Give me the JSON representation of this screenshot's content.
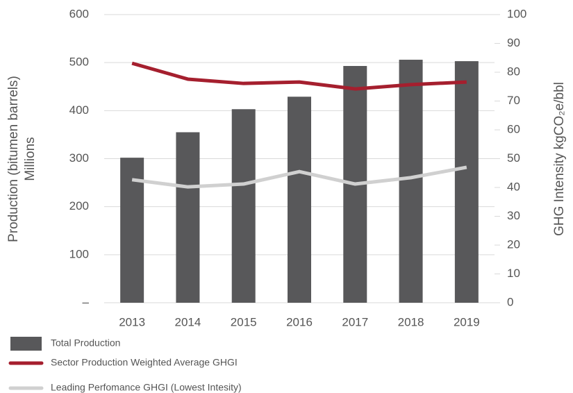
{
  "chart_data": {
    "type": "bar",
    "categories": [
      "2013",
      "2014",
      "2015",
      "2016",
      "2017",
      "2018",
      "2019"
    ],
    "y_label": [
      "Production (bitumen barrels)",
      "Millions"
    ],
    "y2_label": "GHG Intensity kgCO₂e/bbl",
    "series": [
      {
        "name": "Total Production",
        "type": "bar",
        "color": "#58585a",
        "values": [
          302,
          355,
          403,
          429,
          493,
          506,
          503
        ]
      },
      {
        "name": "Sector Production Weighted Average GHGI",
        "type": "line",
        "axis": "y2",
        "color": "#a51f2e",
        "values": [
          83.1,
          77.6,
          76.1,
          76.6,
          74.2,
          75.7,
          76.6
        ]
      },
      {
        "name": "Leading Perfomance GHGI (Lowest Intesity)",
        "type": "line",
        "axis": "y2",
        "color": "#d0d0d0",
        "values": [
          42.7,
          40.2,
          41.2,
          45.5,
          41.2,
          43.4,
          47
        ]
      }
    ],
    "ylim": [
      0,
      600
    ],
    "yticks": [
      {
        "value": 0,
        "label": "–"
      },
      100,
      200,
      300,
      400,
      500,
      600
    ],
    "y2lim": [
      0,
      100
    ],
    "y2ticks": [
      0,
      10,
      20,
      30,
      40,
      50,
      60,
      70,
      80,
      90,
      100
    ],
    "grid": true
  }
}
